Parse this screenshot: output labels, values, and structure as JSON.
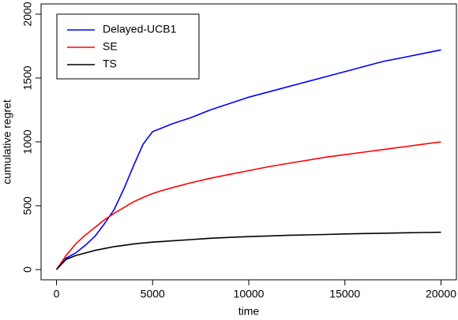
{
  "chart_data": {
    "type": "line",
    "xlabel": "time",
    "ylabel": "cumulative regret",
    "x": [
      0,
      500,
      1000,
      1500,
      2000,
      2500,
      3000,
      3500,
      4000,
      4500,
      5000,
      5500,
      6000,
      7000,
      8000,
      9000,
      10000,
      11000,
      12000,
      13000,
      14000,
      15000,
      16000,
      17000,
      18000,
      19000,
      20000
    ],
    "series": [
      {
        "name": "Delayed-UCB1",
        "color": "#0000ff",
        "values": [
          0,
          90,
          130,
          190,
          260,
          360,
          470,
          630,
          810,
          980,
          1080,
          1110,
          1140,
          1190,
          1250,
          1300,
          1350,
          1390,
          1430,
          1470,
          1510,
          1550,
          1590,
          1630,
          1660,
          1690,
          1720
        ]
      },
      {
        "name": "SE",
        "color": "#ff0000",
        "values": [
          0,
          110,
          200,
          270,
          330,
          390,
          440,
          485,
          530,
          565,
          595,
          620,
          640,
          680,
          715,
          745,
          775,
          805,
          830,
          855,
          880,
          900,
          920,
          940,
          960,
          980,
          1000
        ]
      },
      {
        "name": "TS",
        "color": "#000000",
        "values": [
          0,
          80,
          110,
          130,
          150,
          165,
          180,
          190,
          200,
          208,
          215,
          220,
          225,
          235,
          245,
          252,
          258,
          263,
          268,
          272,
          275,
          279,
          282,
          285,
          288,
          290,
          292
        ]
      }
    ],
    "xlim": [
      -800,
      20800
    ],
    "xticks": [
      0,
      5000,
      10000,
      15000,
      20000
    ],
    "ylim": [
      -80,
      2080
    ],
    "yticks": [
      0,
      500,
      1000,
      1500,
      2000
    ],
    "legend": "top-left"
  }
}
